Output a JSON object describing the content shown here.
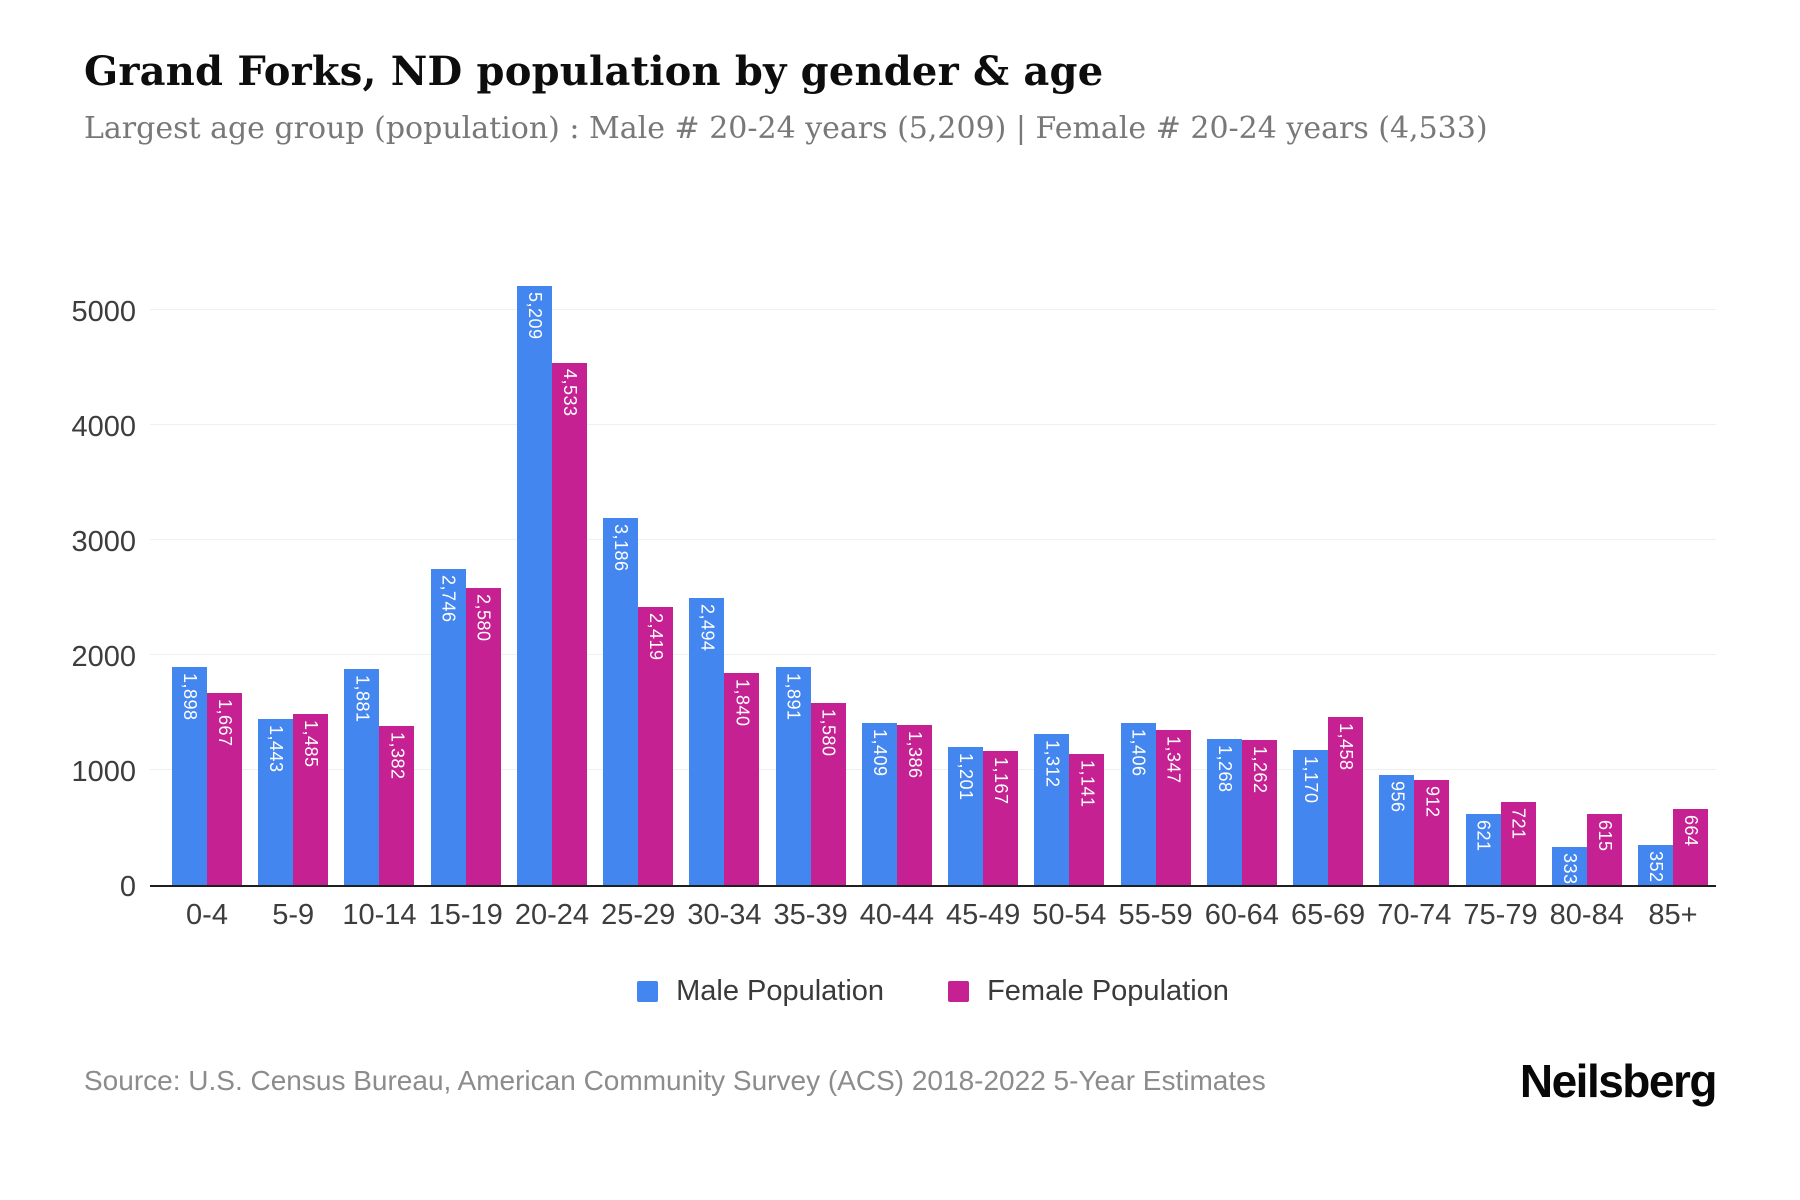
{
  "header": {
    "title": "Grand Forks, ND population by gender & age",
    "subtitle": "Largest age group (population) : Male # 20-24 years (5,209) | Female # 20-24 years (4,533)"
  },
  "chart_data": {
    "type": "bar",
    "title": "Grand Forks, ND population by gender & age",
    "xlabel": "",
    "ylabel": "",
    "categories": [
      "0-4",
      "5-9",
      "10-14",
      "15-19",
      "20-24",
      "25-29",
      "30-34",
      "35-39",
      "40-44",
      "45-49",
      "50-54",
      "55-59",
      "60-64",
      "65-69",
      "70-74",
      "75-79",
      "80-84",
      "85+"
    ],
    "series": [
      {
        "name": "Male Population",
        "color": "#4486f0",
        "values": [
          1898,
          1443,
          1881,
          2746,
          5209,
          3186,
          2494,
          1891,
          1409,
          1201,
          1312,
          1406,
          1268,
          1170,
          956,
          621,
          333,
          352
        ]
      },
      {
        "name": "Female Population",
        "color": "#c52192",
        "values": [
          1667,
          1485,
          1382,
          2580,
          4533,
          2419,
          1840,
          1580,
          1386,
          1167,
          1141,
          1347,
          1262,
          1458,
          912,
          721,
          615,
          664
        ]
      }
    ],
    "y_ticks": [
      0,
      1000,
      2000,
      3000,
      4000,
      5000
    ],
    "ylim": [
      0,
      5500
    ],
    "grid": "horizontal",
    "legend_position": "bottom",
    "bar_label_color": "#ffffff",
    "axis_line_color": "#1f1f1f",
    "gridline_color": "#f0f0f0"
  },
  "legend": {
    "male_label": "Male Population",
    "female_label": "Female Population"
  },
  "footer": {
    "source": "Source: U.S. Census Bureau, American Community Survey (ACS) 2018-2022 5-Year Estimates",
    "brand": "Neilsberg"
  }
}
